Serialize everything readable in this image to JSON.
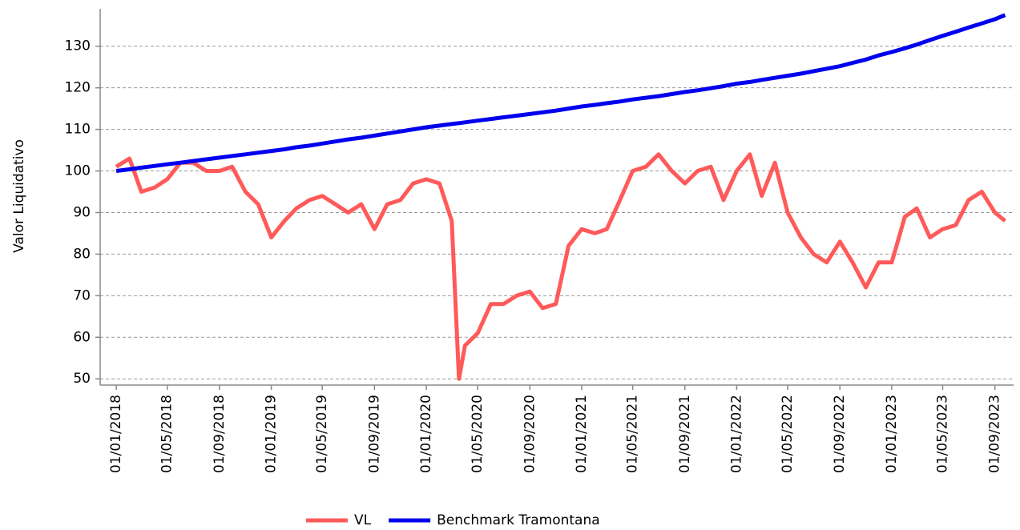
{
  "chart_data": {
    "type": "line",
    "y_label": "Valor Liquidativo",
    "x": [
      "2018-01-01",
      "2018-02-01",
      "2018-03-01",
      "2018-04-01",
      "2018-05-01",
      "2018-06-01",
      "2018-07-01",
      "2018-08-01",
      "2018-09-01",
      "2018-10-01",
      "2018-11-01",
      "2018-12-01",
      "2019-01-01",
      "2019-02-01",
      "2019-03-01",
      "2019-04-01",
      "2019-05-01",
      "2019-06-01",
      "2019-07-01",
      "2019-08-01",
      "2019-09-01",
      "2019-10-01",
      "2019-11-01",
      "2019-12-01",
      "2020-01-01",
      "2020-02-01",
      "2020-03-01",
      "2020-03-18",
      "2020-04-01",
      "2020-05-01",
      "2020-06-01",
      "2020-07-01",
      "2020-08-01",
      "2020-09-01",
      "2020-10-01",
      "2020-11-01",
      "2020-12-01",
      "2021-01-01",
      "2021-02-01",
      "2021-03-01",
      "2021-04-01",
      "2021-05-01",
      "2021-06-01",
      "2021-07-01",
      "2021-08-01",
      "2021-09-01",
      "2021-10-01",
      "2021-11-01",
      "2021-12-01",
      "2022-01-01",
      "2022-02-01",
      "2022-03-01",
      "2022-04-01",
      "2022-05-01",
      "2022-06-01",
      "2022-07-01",
      "2022-08-01",
      "2022-09-01",
      "2022-10-01",
      "2022-11-01",
      "2022-12-01",
      "2023-01-01",
      "2023-02-01",
      "2023-03-01",
      "2023-04-01",
      "2023-05-01",
      "2023-06-01",
      "2023-07-01",
      "2023-08-01",
      "2023-09-01",
      "2023-09-25"
    ],
    "series": [
      {
        "name": "VL",
        "color": "#ff5a5a",
        "values": [
          101,
          103,
          95,
          96,
          98,
          102,
          102,
          100,
          100,
          101,
          95,
          92,
          84,
          88,
          91,
          93,
          94,
          92,
          90,
          92,
          86,
          92,
          93,
          97,
          98,
          97,
          88,
          50,
          58,
          61,
          68,
          68,
          70,
          71,
          67,
          68,
          82,
          86,
          85,
          86,
          93,
          100,
          101,
          104,
          100,
          97,
          100,
          101,
          93,
          100,
          104,
          94,
          102,
          90,
          84,
          80,
          78,
          83,
          78,
          72,
          78,
          78,
          89,
          91,
          84,
          86,
          87,
          93,
          95,
          90,
          88
        ]
      },
      {
        "name": "Benchmark Tramontana",
        "color": "#0000ee",
        "values": [
          100,
          100.4,
          100.8,
          101.2,
          101.6,
          102,
          102.4,
          102.8,
          103.2,
          103.6,
          104,
          104.4,
          104.8,
          105.2,
          105.7,
          106.1,
          106.6,
          107.1,
          107.6,
          108,
          108.5,
          109,
          109.5,
          110,
          110.5,
          110.9,
          111.3,
          111.5,
          111.7,
          112.1,
          112.5,
          112.9,
          113.3,
          113.7,
          114.1,
          114.5,
          115,
          115.5,
          115.9,
          116.3,
          116.7,
          117.2,
          117.6,
          118,
          118.5,
          119,
          119.4,
          119.9,
          120.4,
          121,
          121.4,
          121.9,
          122.4,
          122.9,
          123.4,
          124,
          124.6,
          125.2,
          126,
          126.8,
          127.8,
          128.6,
          129.5,
          130.4,
          131.5,
          132.5,
          133.5,
          134.5,
          135.5,
          136.5,
          137.5
        ]
      }
    ],
    "xlim": [
      "2017-11-24",
      "2023-10-15"
    ],
    "xticks": [
      {
        "value": "2018-01-01",
        "label": "01/01/2018"
      },
      {
        "value": "2018-05-01",
        "label": "01/05/2018"
      },
      {
        "value": "2018-09-01",
        "label": "01/09/2018"
      },
      {
        "value": "2019-01-01",
        "label": "01/01/2019"
      },
      {
        "value": "2019-05-01",
        "label": "01/05/2019"
      },
      {
        "value": "2019-09-01",
        "label": "01/09/2019"
      },
      {
        "value": "2020-01-01",
        "label": "01/01/2020"
      },
      {
        "value": "2020-05-01",
        "label": "01/05/2020"
      },
      {
        "value": "2020-09-01",
        "label": "01/09/2020"
      },
      {
        "value": "2021-01-01",
        "label": "01/01/2021"
      },
      {
        "value": "2021-05-01",
        "label": "01/05/2021"
      },
      {
        "value": "2021-09-01",
        "label": "01/09/2021"
      },
      {
        "value": "2022-01-01",
        "label": "01/01/2022"
      },
      {
        "value": "2022-05-01",
        "label": "01/05/2022"
      },
      {
        "value": "2022-09-01",
        "label": "01/09/2022"
      },
      {
        "value": "2023-01-01",
        "label": "01/01/2023"
      },
      {
        "value": "2023-05-01",
        "label": "01/05/2023"
      },
      {
        "value": "2023-09-01",
        "label": "01/09/2023"
      }
    ],
    "ylim": [
      48.5,
      139
    ],
    "yticks": [
      50,
      60,
      70,
      80,
      90,
      100,
      110,
      120,
      130
    ],
    "grid": true,
    "legend": "bottom"
  }
}
